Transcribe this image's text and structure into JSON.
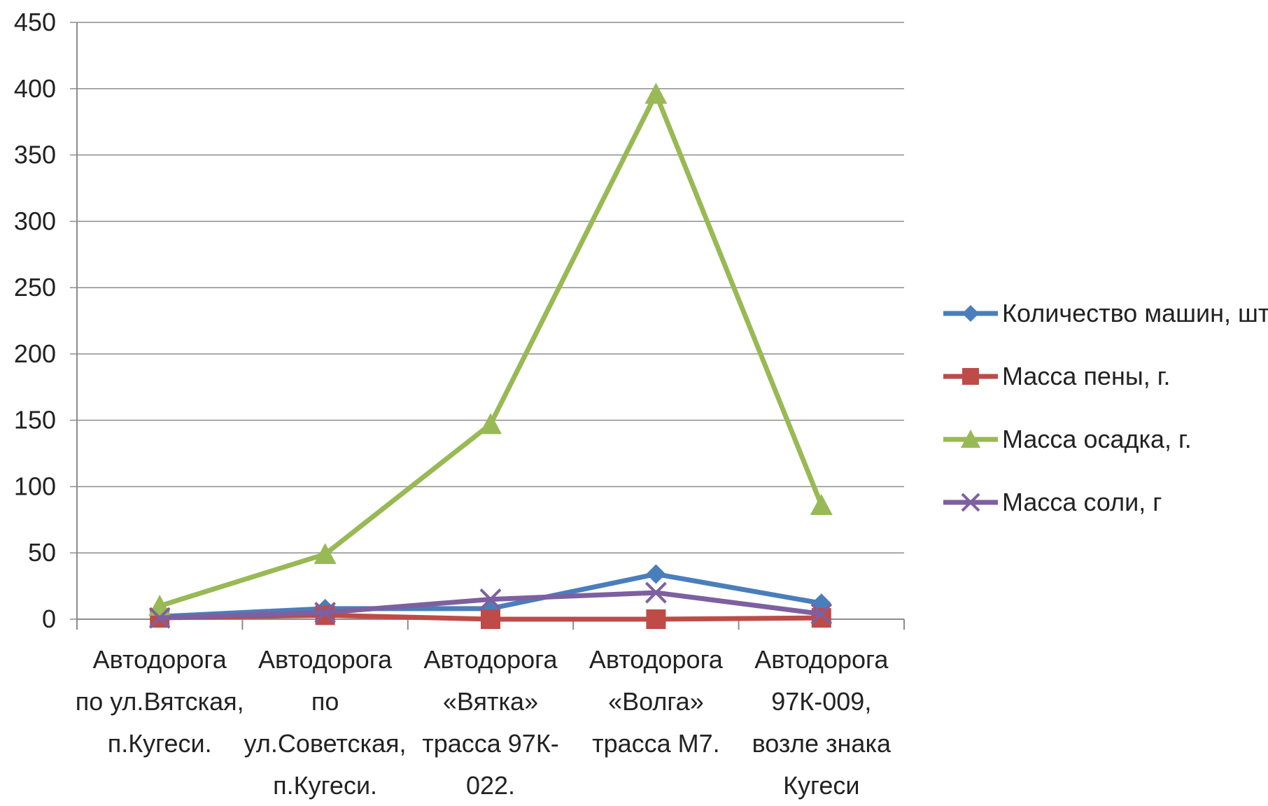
{
  "chart_data": {
    "type": "line",
    "title": "",
    "xlabel": "",
    "ylabel": "",
    "ylim": [
      0,
      450
    ],
    "yticks": [
      0,
      50,
      100,
      150,
      200,
      250,
      300,
      350,
      400,
      450
    ],
    "grid": true,
    "legend_position": "right",
    "categories": [
      [
        "Автодорога",
        "по ул.Вятская,",
        "п.Кугеси."
      ],
      [
        "Автодорога",
        "по",
        "ул.Советская,",
        "п.Кугеси."
      ],
      [
        "Автодорога",
        "«Вятка»",
        "трасса 97К-",
        "022."
      ],
      [
        "Автодорога",
        "«Волга»",
        "трасса М7."
      ],
      [
        "Автодорога",
        "97К-009,",
        "возле знака",
        "Кугеси"
      ]
    ],
    "series": [
      {
        "name": "Количество машин, шт",
        "color": "#4a7ebb",
        "marker": "diamond",
        "values": [
          2,
          8,
          8,
          34,
          12
        ]
      },
      {
        "name": "Масса пены, г.",
        "color": "#be4b48",
        "marker": "square",
        "values": [
          1,
          3,
          0,
          0,
          1
        ]
      },
      {
        "name": "Масса осадка, г.",
        "color": "#98b954",
        "marker": "triangle",
        "values": [
          10,
          49,
          147,
          396,
          86
        ]
      },
      {
        "name": "Масса соли, г",
        "color": "#7d60a0",
        "marker": "x",
        "values": [
          1,
          5,
          15,
          20,
          4
        ]
      }
    ]
  }
}
